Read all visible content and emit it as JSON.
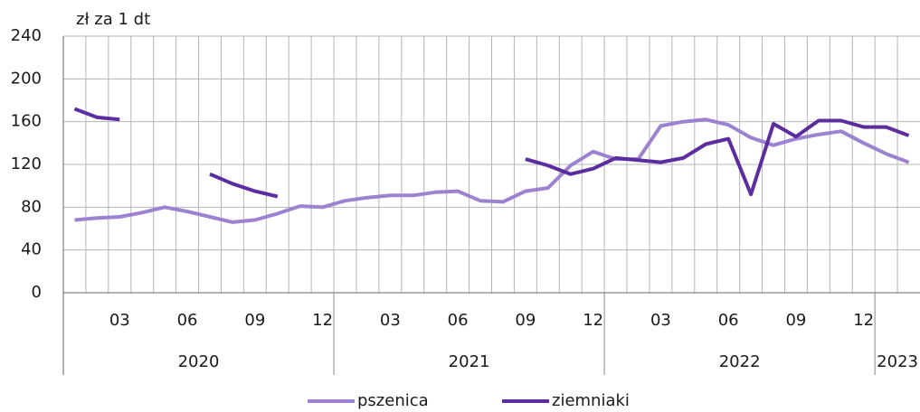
{
  "chart_data": {
    "type": "line",
    "y_label": "zł za 1 dt",
    "categories": [
      null,
      null,
      "03",
      null,
      null,
      "06",
      null,
      null,
      "09",
      null,
      null,
      "12",
      null,
      null,
      "03",
      null,
      null,
      "06",
      null,
      null,
      "09",
      null,
      null,
      "12",
      null,
      null,
      "03",
      null,
      null,
      "06",
      null,
      null,
      "09",
      null,
      null,
      "12",
      null,
      null
    ],
    "year_groups": [
      {
        "label": "2020",
        "months": 12
      },
      {
        "label": "2021",
        "months": 12
      },
      {
        "label": "2022",
        "months": 12
      },
      {
        "label": "2023",
        "months": 2
      }
    ],
    "series": [
      {
        "name": "pszenica",
        "color": "#9c82d0",
        "values": [
          68,
          70,
          71,
          75,
          80,
          76,
          71,
          66,
          68,
          74,
          81,
          80,
          86,
          89,
          91,
          91,
          94,
          95,
          86,
          85,
          95,
          98,
          119,
          132,
          125,
          125,
          156,
          160,
          162,
          157,
          145,
          138,
          144,
          148,
          151,
          140,
          130,
          122
        ]
      },
      {
        "name": "ziemniaki",
        "color": "#5b2d9e",
        "values": [
          172,
          164,
          162,
          null,
          null,
          null,
          111,
          102,
          95,
          90,
          null,
          null,
          null,
          null,
          null,
          null,
          null,
          null,
          null,
          null,
          125,
          119,
          111,
          116,
          126,
          124,
          122,
          126,
          139,
          144,
          92,
          158,
          146,
          161,
          161,
          155,
          155,
          147
        ]
      }
    ],
    "ylim": [
      0,
      240
    ],
    "yticks": [
      0,
      40,
      80,
      120,
      160,
      200,
      240
    ],
    "grid": true
  }
}
